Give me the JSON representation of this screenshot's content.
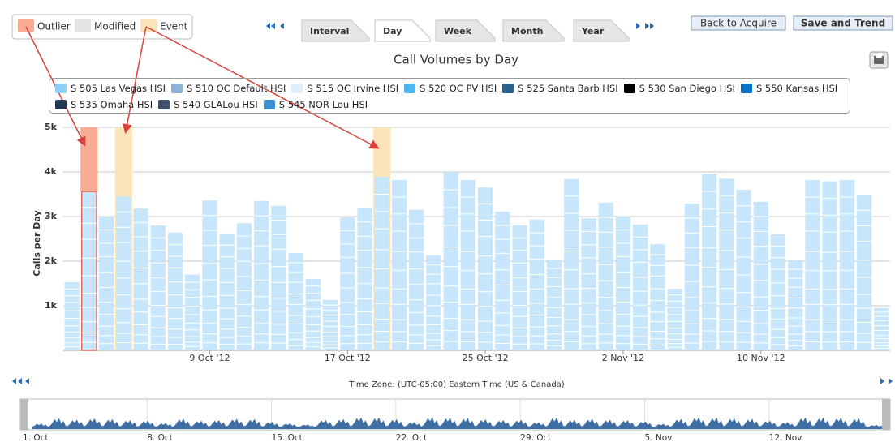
{
  "toolbar": {
    "flags": [
      {
        "label": "Outlier",
        "color": "#f9ab93"
      },
      {
        "label": "Modified",
        "color": "#e4e4e4"
      },
      {
        "label": "Event",
        "color": "#fde4b8"
      }
    ],
    "tabs": [
      "Interval",
      "Day",
      "Week",
      "Month",
      "Year"
    ],
    "active_tab": 1,
    "buttons": [
      "Back to Acquire",
      "Save and Trend"
    ]
  },
  "chart_data": {
    "type": "bar",
    "title": "Call Volumes by Day",
    "y_label": "Calls per Day",
    "legend": [
      {
        "name": "S 505 Las Vegas HSI",
        "color": "#8fd0f8"
      },
      {
        "name": "S 510 OC Default HSI",
        "color": "#8fb2d6"
      },
      {
        "name": "S 515 OC Irvine HSI",
        "color": "#dff0fc"
      },
      {
        "name": "S 520 OC PV HSI",
        "color": "#4fb5f3"
      },
      {
        "name": "S 525 Santa Barb HSI",
        "color": "#2b5f8e"
      },
      {
        "name": "S 530 San Diego HSI",
        "color": "#000000"
      },
      {
        "name": "S 550 Kansas HSI",
        "color": "#0b70c8"
      },
      {
        "name": "S 535 Omaha HSI",
        "color": "#233a57"
      },
      {
        "name": "S 540 GLALou HSI",
        "color": "#3e5168"
      },
      {
        "name": "S 545 NOR Lou HSI",
        "color": "#3c8fd0"
      }
    ],
    "categories": [
      null,
      null,
      null,
      null,
      null,
      null,
      null,
      null,
      "9 Oct '12",
      null,
      null,
      null,
      null,
      null,
      null,
      null,
      "17 Oct '12",
      null,
      null,
      null,
      null,
      null,
      null,
      null,
      "25 Oct '12",
      null,
      null,
      null,
      null,
      null,
      null,
      null,
      "2 Nov '12",
      null,
      null,
      null,
      null,
      null,
      null,
      null,
      "10 Nov '12",
      null,
      null,
      null,
      null,
      null,
      null,
      null
    ],
    "values": [
      1530,
      3560,
      3000,
      3450,
      3180,
      2800,
      2640,
      1700,
      3360,
      2620,
      2850,
      3350,
      3240,
      2180,
      1600,
      1130,
      2980,
      3200,
      3890,
      3820,
      3150,
      2130,
      4000,
      3820,
      3650,
      3110,
      2800,
      2930,
      2040,
      3840,
      2960,
      3310,
      3000,
      2820,
      2380,
      1380,
      3290,
      3960,
      3850,
      3600,
      3330,
      2600,
      2020,
      3820,
      3790,
      3820,
      3490,
      950
    ],
    "outliers": [
      1
    ],
    "events": [
      3,
      18
    ],
    "color": "#c8e6fb",
    "ylim": [
      0,
      5000
    ],
    "yticks": [
      {
        "value": 1000,
        "label": "1k"
      },
      {
        "value": 2000,
        "label": "2k"
      },
      {
        "value": 3000,
        "label": "3k"
      },
      {
        "value": 4000,
        "label": "4k"
      },
      {
        "value": 5000,
        "label": "5k"
      }
    ],
    "grid": true,
    "time_zone": "Time Zone: (UTC-05:00) Eastern Time (US & Canada)",
    "navigator_labels": [
      "1. Oct",
      "8. Oct",
      "15. Oct",
      "22. Oct",
      "29. Oct",
      "5. Nov",
      "12. Nov"
    ]
  }
}
